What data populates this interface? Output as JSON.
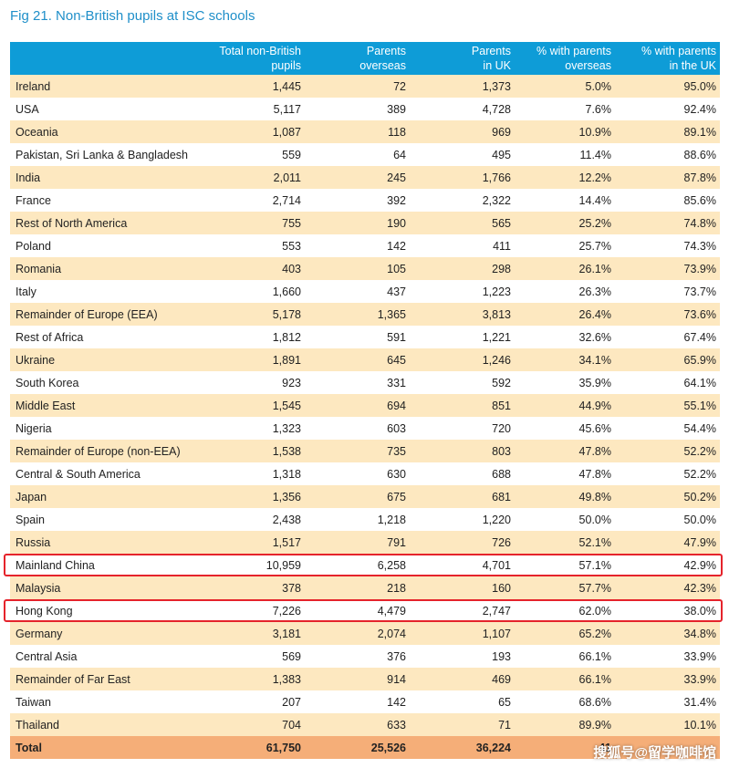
{
  "title": "Fig 21. Non-British pupils at ISC schools",
  "header": {
    "col1": "",
    "col2": "Total non-British\npupils",
    "col3": "Parents\noverseas",
    "col4": "Parents\nin UK",
    "col5": "% with parents\noverseas",
    "col6": "% with parents\nin the UK"
  },
  "rows": [
    [
      "Ireland",
      "1,445",
      "72",
      "1,373",
      "5.0%",
      "95.0%"
    ],
    [
      "USA",
      "5,117",
      "389",
      "4,728",
      "7.6%",
      "92.4%"
    ],
    [
      "Oceania",
      "1,087",
      "118",
      "969",
      "10.9%",
      "89.1%"
    ],
    [
      "Pakistan, Sri Lanka & Bangladesh",
      "559",
      "64",
      "495",
      "11.4%",
      "88.6%"
    ],
    [
      "India",
      "2,011",
      "245",
      "1,766",
      "12.2%",
      "87.8%"
    ],
    [
      "France",
      "2,714",
      "392",
      "2,322",
      "14.4%",
      "85.6%"
    ],
    [
      "Rest of North America",
      "755",
      "190",
      "565",
      "25.2%",
      "74.8%"
    ],
    [
      "Poland",
      "553",
      "142",
      "411",
      "25.7%",
      "74.3%"
    ],
    [
      "Romania",
      "403",
      "105",
      "298",
      "26.1%",
      "73.9%"
    ],
    [
      "Italy",
      "1,660",
      "437",
      "1,223",
      "26.3%",
      "73.7%"
    ],
    [
      "Remainder of Europe (EEA)",
      "5,178",
      "1,365",
      "3,813",
      "26.4%",
      "73.6%"
    ],
    [
      "Rest of Africa",
      "1,812",
      "591",
      "1,221",
      "32.6%",
      "67.4%"
    ],
    [
      "Ukraine",
      "1,891",
      "645",
      "1,246",
      "34.1%",
      "65.9%"
    ],
    [
      "South Korea",
      "923",
      "331",
      "592",
      "35.9%",
      "64.1%"
    ],
    [
      "Middle East",
      "1,545",
      "694",
      "851",
      "44.9%",
      "55.1%"
    ],
    [
      "Nigeria",
      "1,323",
      "603",
      "720",
      "45.6%",
      "54.4%"
    ],
    [
      "Remainder of Europe (non-EEA)",
      "1,538",
      "735",
      "803",
      "47.8%",
      "52.2%"
    ],
    [
      "Central & South America",
      "1,318",
      "630",
      "688",
      "47.8%",
      "52.2%"
    ],
    [
      "Japan",
      "1,356",
      "675",
      "681",
      "49.8%",
      "50.2%"
    ],
    [
      "Spain",
      "2,438",
      "1,218",
      "1,220",
      "50.0%",
      "50.0%"
    ],
    [
      "Russia",
      "1,517",
      "791",
      "726",
      "52.1%",
      "47.9%"
    ],
    [
      "Mainland China",
      "10,959",
      "6,258",
      "4,701",
      "57.1%",
      "42.9%"
    ],
    [
      "Malaysia",
      "378",
      "218",
      "160",
      "57.7%",
      "42.3%"
    ],
    [
      "Hong Kong",
      "7,226",
      "4,479",
      "2,747",
      "62.0%",
      "38.0%"
    ],
    [
      "Germany",
      "3,181",
      "2,074",
      "1,107",
      "65.2%",
      "34.8%"
    ],
    [
      "Central Asia",
      "569",
      "376",
      "193",
      "66.1%",
      "33.9%"
    ],
    [
      "Remainder of Far East",
      "1,383",
      "914",
      "469",
      "66.1%",
      "33.9%"
    ],
    [
      "Taiwan",
      "207",
      "142",
      "65",
      "68.6%",
      "31.4%"
    ],
    [
      "Thailand",
      "704",
      "633",
      "71",
      "89.9%",
      "10.1%"
    ]
  ],
  "total": [
    "Total",
    "61,750",
    "25,526",
    "36,224",
    "41",
    ""
  ],
  "highlighted_rows": [
    "Mainland China",
    "Hong Kong"
  ],
  "highlight_color": "#e5232b",
  "watermark": "搜狐号@留学咖啡馆",
  "colors": {
    "header_bg": "#0e9cd7",
    "row_alt": "#fde8c0",
    "total_bg": "#f5ae78",
    "title": "#1f8fc9"
  }
}
